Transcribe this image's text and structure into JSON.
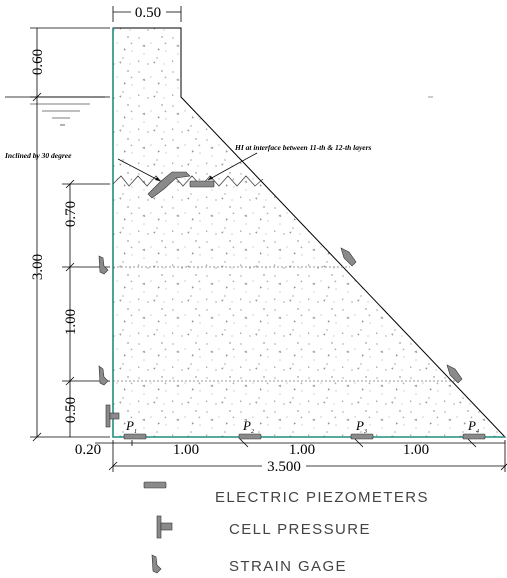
{
  "dimensions": {
    "top_width": "0.50",
    "freeboard": "0.60",
    "water_depth": "3.00",
    "upper_layer": "0.70",
    "mid_layer": "1.00",
    "base_layer": "0.50",
    "heel_offset": "0.20",
    "spacing_1": "1.00",
    "spacing_2": "1.00",
    "spacing_3": "1.00",
    "base_width": "3.500"
  },
  "annotations": {
    "inclined": "Inclined by 30 degree",
    "interface": "HI at interface between 11-th & 12-th layers"
  },
  "piezometers": [
    {
      "label": "P",
      "sub": "1"
    },
    {
      "label": "P",
      "sub": "2"
    },
    {
      "label": "P",
      "sub": "3"
    },
    {
      "label": "P",
      "sub": "4"
    }
  ],
  "legend": {
    "piezometer": "ELECTRIC PIEZOMETERS",
    "cell_pressure": "CELL PRESSURE",
    "strain_gage": "STRAIN GAGE"
  },
  "colors": {
    "dam_edge": "#1f8f7f",
    "gauge": "#8a8a8a"
  }
}
